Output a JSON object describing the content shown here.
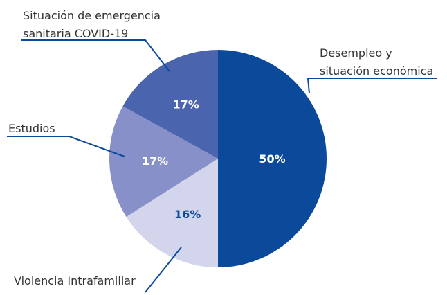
{
  "chart_data": {
    "type": "pie",
    "categories": [
      [
        "Desempleo y",
        "situación económica"
      ],
      [
        "Violencia Intrafamiliar"
      ],
      [
        "Estudios"
      ],
      [
        "Situación de emergencia",
        "sanitaria COVID-19"
      ]
    ],
    "values": [
      50,
      16,
      17,
      17
    ],
    "value_labels": [
      "50%",
      "16%",
      "17%",
      "17%"
    ],
    "colors": [
      "#0b4a9b",
      "#d2d5ec",
      "#8790c8",
      "#4a64ae"
    ]
  }
}
